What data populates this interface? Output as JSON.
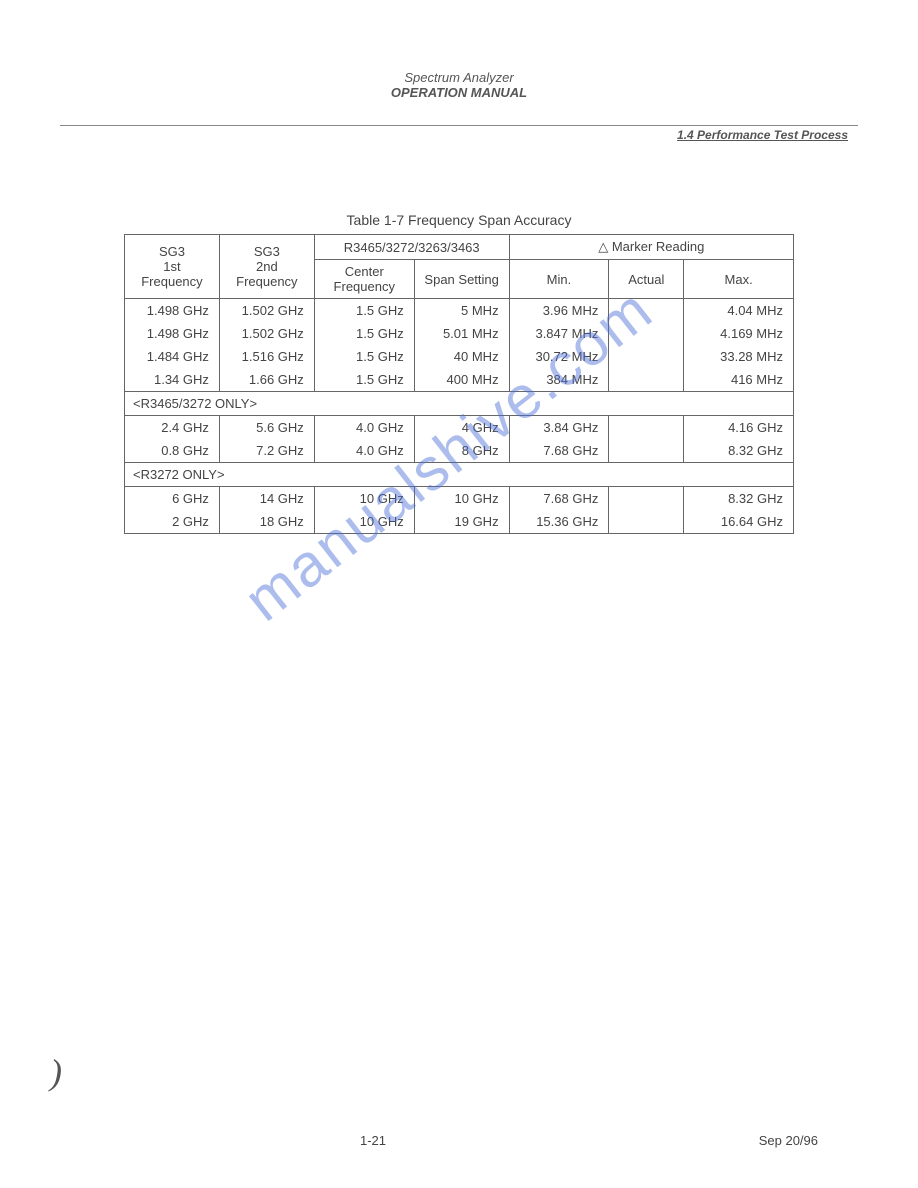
{
  "header": {
    "title": "Spectrum Analyzer",
    "subtitle": "OPERATION MANUAL",
    "section_ref": "1.4   Performance Test Process"
  },
  "table_caption": "Table 1-7  Frequency Span Accuracy",
  "columns": {
    "sg3_1st_line1": "SG3",
    "sg3_1st_line2": "1st",
    "sg3_1st_line3": "Frequency",
    "sg3_2nd_line1": "SG3",
    "sg3_2nd_line2": "2nd",
    "sg3_2nd_line3": "Frequency",
    "device_header": "R3465/3272/3263/3463",
    "center_freq": "Center Frequency",
    "span_setting": "Span Setting",
    "marker_header": "△ Marker Reading",
    "min": "Min.",
    "actual": "Actual",
    "max": "Max."
  },
  "group1": [
    {
      "f1": "1.498 GHz",
      "f2": "1.502 GHz",
      "cf": "1.5 GHz",
      "sp": "5 MHz",
      "min": "3.96 MHz",
      "max": "4.04 MHz"
    },
    {
      "f1": "1.498 GHz",
      "f2": "1.502 GHz",
      "cf": "1.5 GHz",
      "sp": "5.01 MHz",
      "min": "3.847 MHz",
      "max": "4.169 MHz"
    },
    {
      "f1": "1.484 GHz",
      "f2": "1.516 GHz",
      "cf": "1.5 GHz",
      "sp": "40 MHz",
      "min": "30.72 MHz",
      "max": "33.28 MHz"
    },
    {
      "f1": "1.34 GHz",
      "f2": "1.66 GHz",
      "cf": "1.5 GHz",
      "sp": "400 MHz",
      "min": "384 MHz",
      "max": "416 MHz"
    }
  ],
  "section_labels": {
    "s1": "<R3465/3272 ONLY>",
    "s2": "<R3272 ONLY>"
  },
  "group2": [
    {
      "f1": "2.4 GHz",
      "f2": "5.6 GHz",
      "cf": "4.0 GHz",
      "sp": "4 GHz",
      "min": "3.84 GHz",
      "max": "4.16 GHz"
    },
    {
      "f1": "0.8 GHz",
      "f2": "7.2 GHz",
      "cf": "4.0 GHz",
      "sp": "8 GHz",
      "min": "7.68 GHz",
      "max": "8.32 GHz"
    }
  ],
  "group3": [
    {
      "f1": "6 GHz",
      "f2": "14 GHz",
      "cf": "10 GHz",
      "sp": "10 GHz",
      "min": "7.68 GHz",
      "max": "8.32 GHz"
    },
    {
      "f1": "2 GHz",
      "f2": "18 GHz",
      "cf": "10 GHz",
      "sp": "19 GHz",
      "min": "15.36 GHz",
      "max": "16.64 GHz"
    }
  ],
  "footer": {
    "page": "1-21",
    "date": "Sep 20/96"
  },
  "watermark_text": "manualshive.com",
  "colors": {
    "text": "#444444",
    "border": "#666666",
    "watermark": "#4a6fd8",
    "background": "#ffffff"
  }
}
